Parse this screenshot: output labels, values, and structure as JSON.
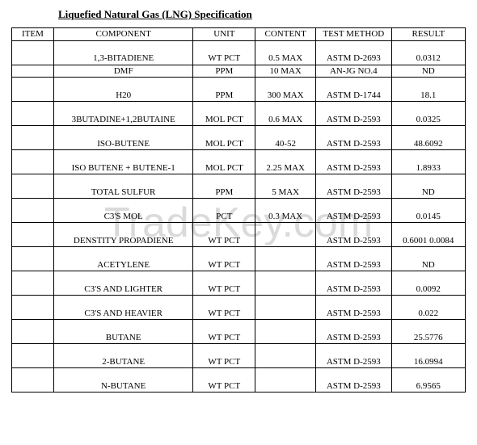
{
  "title": "Liquefied Natural Gas (LNG) Specification",
  "watermark": "TradeKey.com",
  "columns": {
    "item": "ITEM",
    "component": "COMPONENT",
    "unit": "UNIT",
    "content": "CONTENT",
    "method": "TEST METHOD",
    "result": "RESULT"
  },
  "rows": [
    {
      "component": "1,3-BITADIENE",
      "unit": "WT PCT",
      "content": "0.5 MAX",
      "method": "ASTM D-2693",
      "result": "0.0312"
    },
    {
      "component": "DMF",
      "unit": "PPM",
      "content": "10 MAX",
      "method": "AN-JG NO.4",
      "result": "ND"
    },
    {
      "component": "H20",
      "unit": "PPM",
      "content": "300 MAX",
      "method": "ASTM D-1744",
      "result": "18.1"
    },
    {
      "component": "3BUTADINE+1,2BUTAINE",
      "unit": "MOL PCT",
      "content": "0.6 MAX",
      "method": "ASTM D-2593",
      "result": "0.0325"
    },
    {
      "component": "ISO-BUTENE",
      "unit": "MOL PCT",
      "content": "40-52",
      "method": "ASTM D-2593",
      "result": "48.6092"
    },
    {
      "component": "ISO BUTENE + BUTENE-1",
      "unit": "MOL PCT",
      "content": "2.25 MAX",
      "method": "ASTM D-2593",
      "result": "1.8933"
    },
    {
      "component": "TOTAL SULFUR",
      "unit": "PPM",
      "content": "5 MAX",
      "method": "ASTM D-2593",
      "result": "ND"
    },
    {
      "component": "C3'S MOL",
      "unit": "PCT",
      "content": "0.3 MAX",
      "method": "ASTM D-2593",
      "result": "0.0145"
    },
    {
      "component": "DENSTITY PROPADIENE",
      "unit": "WT PCT",
      "content": "",
      "method": "ASTM D-2593",
      "result": "0.6001 0.0084"
    },
    {
      "component": "ACETYLENE",
      "unit": "WT PCT",
      "content": "",
      "method": "ASTM D-2593",
      "result": "ND"
    },
    {
      "component": "C3'S AND LIGHTER",
      "unit": "WT PCT",
      "content": "",
      "method": "ASTM D-2593",
      "result": "0.0092"
    },
    {
      "component": "C3'S AND HEAVIER",
      "unit": "WT PCT",
      "content": "",
      "method": "ASTM D-2593",
      "result": "0.022"
    },
    {
      "component": "BUTANE",
      "unit": "WT PCT",
      "content": "",
      "method": "ASTM D-2593",
      "result": "25.5776"
    },
    {
      "component": "2-BUTANE",
      "unit": "WT PCT",
      "content": "",
      "method": "ASTM D-2593",
      "result": "16.0994"
    },
    {
      "component": "N-BUTANE",
      "unit": "WT PCT",
      "content": "",
      "method": "ASTM D-2593",
      "result": "6.9565"
    }
  ]
}
